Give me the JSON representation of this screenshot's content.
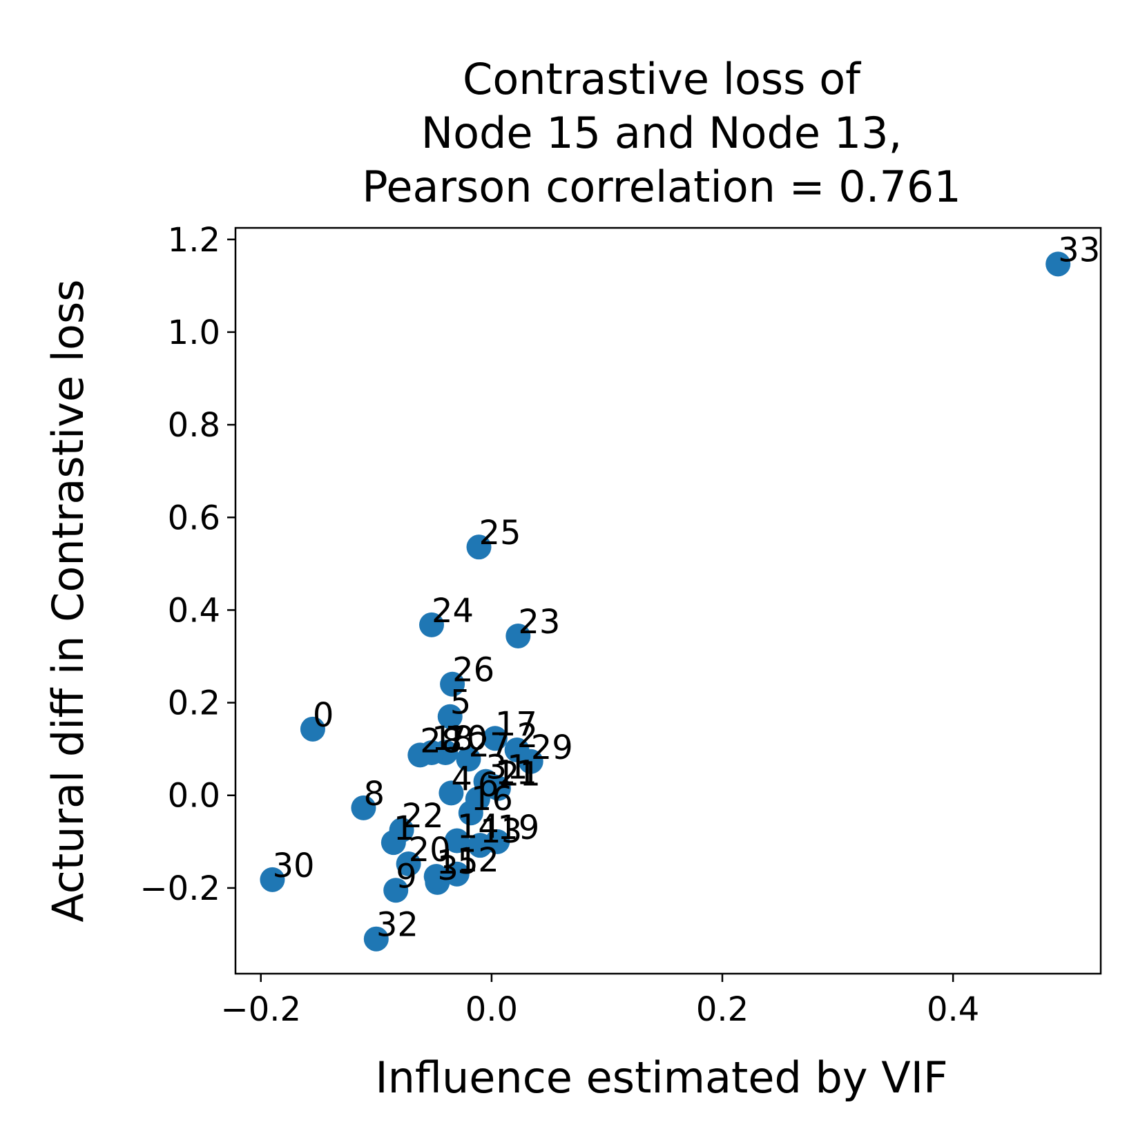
{
  "chart_data": {
    "type": "scatter",
    "title_lines": [
      "Contrastive loss of",
      "Node 15 and Node 13,",
      "Pearson correlation = 0.761"
    ],
    "xlabel": "Influence estimated by VIF",
    "ylabel": "Actural diff in Contrastive loss",
    "xlim": [
      -0.222,
      0.528
    ],
    "ylim": [
      -0.385,
      1.225
    ],
    "xticks": [
      -0.2,
      0.0,
      0.2,
      0.4
    ],
    "xtick_labels": [
      "−0.2",
      "0.0",
      "0.2",
      "0.4"
    ],
    "yticks": [
      -0.2,
      0.0,
      0.2,
      0.4,
      0.6,
      0.8,
      1.0,
      1.2
    ],
    "ytick_labels": [
      "−0.2",
      "0.0",
      "0.2",
      "0.4",
      "0.6",
      "0.8",
      "1.0",
      "1.2"
    ],
    "marker_color": "#1f77b4",
    "points": [
      {
        "label": "0",
        "x": -0.155,
        "y": 0.143
      },
      {
        "label": "1",
        "x": -0.085,
        "y": -0.102
      },
      {
        "label": "2",
        "x": 0.022,
        "y": 0.098
      },
      {
        "label": "3",
        "x": -0.047,
        "y": -0.188
      },
      {
        "label": "4",
        "x": -0.035,
        "y": 0.005
      },
      {
        "label": "5",
        "x": -0.036,
        "y": 0.17
      },
      {
        "label": "6",
        "x": -0.012,
        "y": -0.008
      },
      {
        "label": "7",
        "x": -0.04,
        "y": 0.092
      },
      {
        "label": "8",
        "x": -0.111,
        "y": -0.027
      },
      {
        "label": "9",
        "x": -0.083,
        "y": -0.205
      },
      {
        "label": "10",
        "x": -0.04,
        "y": 0.093
      },
      {
        "label": "11",
        "x": 0.003,
        "y": 0.018
      },
      {
        "label": "12",
        "x": -0.03,
        "y": -0.17
      },
      {
        "label": "13",
        "x": -0.01,
        "y": -0.108
      },
      {
        "label": "14",
        "x": -0.03,
        "y": -0.098
      },
      {
        "label": "15",
        "x": -0.048,
        "y": -0.175
      },
      {
        "label": "16",
        "x": -0.018,
        "y": -0.038
      },
      {
        "label": "17",
        "x": 0.003,
        "y": 0.123
      },
      {
        "label": "18",
        "x": -0.052,
        "y": 0.092
      },
      {
        "label": "19",
        "x": 0.005,
        "y": -0.1
      },
      {
        "label": "20",
        "x": -0.072,
        "y": -0.148
      },
      {
        "label": "21",
        "x": 0.006,
        "y": 0.015
      },
      {
        "label": "22",
        "x": -0.078,
        "y": -0.075
      },
      {
        "label": "23",
        "x": 0.023,
        "y": 0.344
      },
      {
        "label": "24",
        "x": -0.052,
        "y": 0.368
      },
      {
        "label": "25",
        "x": -0.011,
        "y": 0.536
      },
      {
        "label": "26",
        "x": -0.034,
        "y": 0.24
      },
      {
        "label": "27",
        "x": -0.02,
        "y": 0.078
      },
      {
        "label": "28",
        "x": -0.062,
        "y": 0.087
      },
      {
        "label": "29",
        "x": 0.034,
        "y": 0.073
      },
      {
        "label": "30",
        "x": -0.19,
        "y": -0.182
      },
      {
        "label": "31",
        "x": -0.005,
        "y": 0.03
      },
      {
        "label": "32",
        "x": -0.1,
        "y": -0.31
      },
      {
        "label": "33",
        "x": 0.491,
        "y": 1.147
      }
    ]
  }
}
